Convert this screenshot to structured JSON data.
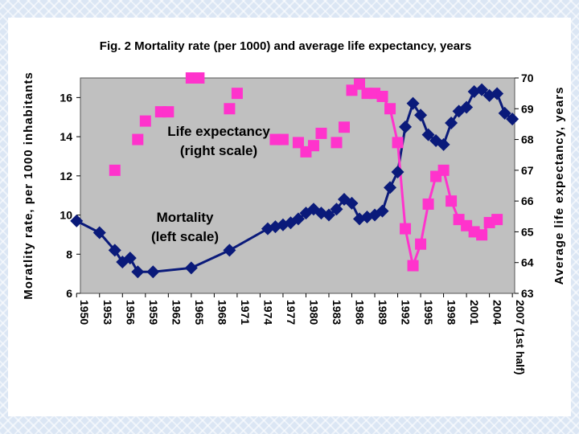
{
  "chart_data": {
    "type": "line",
    "title": "Fig. 2 Mortality rate (per 1000) and average life expectancy, years",
    "ylabel_left": "Moratlity rate, per 1000 inhabitants",
    "ylabel_right": "Average life expectancy, years",
    "ylim_left": [
      6,
      17
    ],
    "ylim_right": [
      63,
      70
    ],
    "yticks_left": [
      6,
      8,
      10,
      12,
      14,
      16
    ],
    "yticks_right": [
      63,
      64,
      65,
      66,
      67,
      68,
      69,
      70
    ],
    "xlim": [
      1950,
      2007.5
    ],
    "xtick_values": [
      1950,
      1953,
      1956,
      1959,
      1962,
      1965,
      1968,
      1971,
      1974,
      1977,
      1980,
      1983,
      1986,
      1989,
      1992,
      1995,
      1998,
      2001,
      2004,
      2007
    ],
    "xtick_labels": [
      "1950",
      "1953",
      "1956",
      "1959",
      "1962",
      "1965",
      "1968",
      "1971",
      "1974",
      "1977",
      "1980",
      "1983",
      "1986",
      "1989",
      "1992",
      "1995",
      "1998",
      "2001",
      "2004",
      "2007 (1st half)"
    ],
    "grid": false,
    "colors": {
      "plot_bg": "#c0c0c0",
      "mortality": "#0a1a7a",
      "life_expectancy": "#ff33cc"
    },
    "annotations": [
      {
        "id": "life",
        "lines": [
          "Life expectancy",
          "(right scale)"
        ]
      },
      {
        "id": "mort",
        "lines": [
          "Mortality",
          "(left scale)"
        ]
      }
    ],
    "series": [
      {
        "name": "Mortality",
        "axis": "left",
        "connected": true,
        "marker": "diamond",
        "x": [
          1950,
          1953,
          1955,
          1956,
          1957,
          1958,
          1960,
          1965,
          1970,
          1975,
          1976,
          1977,
          1978,
          1979,
          1980,
          1981,
          1982,
          1983,
          1984,
          1985,
          1986,
          1987,
          1988,
          1989,
          1990,
          1991,
          1992,
          1993,
          1994,
          1995,
          1996,
          1997,
          1998,
          1999,
          2000,
          2001,
          2002,
          2003,
          2004,
          2005,
          2006,
          2007
        ],
        "y": [
          9.7,
          9.1,
          8.2,
          7.6,
          7.8,
          7.1,
          7.1,
          7.3,
          8.2,
          9.3,
          9.4,
          9.5,
          9.6,
          9.8,
          10.1,
          10.3,
          10.1,
          10.0,
          10.3,
          10.8,
          10.6,
          9.8,
          9.9,
          10.0,
          10.2,
          11.4,
          12.2,
          14.5,
          15.7,
          15.1,
          14.1,
          13.8,
          13.6,
          14.7,
          15.3,
          15.5,
          16.3,
          16.4,
          16.1,
          16.2,
          15.2,
          14.9
        ]
      },
      {
        "name": "Life expectancy",
        "axis": "right",
        "connected_from_x": 1986,
        "marker": "square",
        "x": [
          1955,
          1958,
          1959,
          1961,
          1962,
          1965,
          1966,
          1970,
          1971,
          1976,
          1977,
          1979,
          1980,
          1981,
          1982,
          1984,
          1985,
          1986,
          1987,
          1988,
          1989,
          1990,
          1991,
          1992,
          1993,
          1994,
          1995,
          1996,
          1997,
          1998,
          1999,
          2000,
          2001,
          2002,
          2003,
          2004,
          2005
        ],
        "y": [
          67.0,
          68.0,
          68.6,
          68.9,
          68.9,
          70.0,
          70.0,
          69.0,
          69.5,
          68.0,
          68.0,
          67.9,
          67.6,
          67.8,
          68.2,
          67.9,
          68.4,
          69.6,
          69.8,
          69.5,
          69.5,
          69.4,
          69.0,
          67.9,
          65.1,
          63.9,
          64.6,
          65.9,
          66.8,
          67.0,
          66.0,
          65.4,
          65.2,
          65.0,
          64.9,
          65.3,
          65.4
        ]
      }
    ]
  }
}
